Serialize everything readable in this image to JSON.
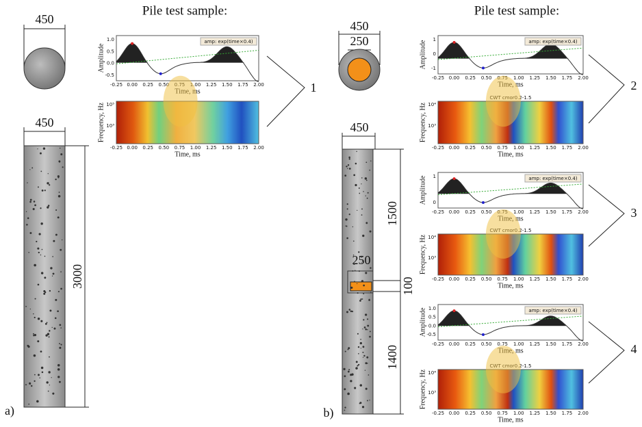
{
  "panel_a": {
    "label": "a)",
    "title": "Pile test sample:",
    "cap_diameter": "450",
    "shaft_width": "450",
    "length": "3000",
    "callout": "1"
  },
  "panel_b": {
    "label": "b)",
    "title": "Pile test sample:",
    "outer_diameter": "450",
    "inner_diameter": "250",
    "shaft_width": "450",
    "upper_length": "1500",
    "defect_width": "250",
    "defect_height": "100",
    "lower_length": "1400",
    "callouts": [
      "2",
      "3",
      "4"
    ]
  },
  "time_ticks": [
    "-0.25",
    "0.00",
    "0.25",
    "0.50",
    "0.75",
    "1.00",
    "1.25",
    "1.50",
    "1.75",
    "2.00"
  ],
  "plots": [
    {
      "amplitude_label": "Amplitude",
      "time_label": "Time, ms",
      "legend": "amp: exp(time×0.4)",
      "amplitude_ticks": [
        "1.0",
        "0.5",
        "0.0",
        "-0.5"
      ],
      "frequency_label": "Frequency, Hz",
      "frequency_ticks": [
        "10⁵",
        "10³"
      ],
      "cwt_time_label": "Time, ms"
    },
    {
      "amplitude_label": "Amplitude",
      "time_label": "Time, ms",
      "legend": "amp: exp(time×0.4)",
      "amplitude_ticks": [
        "1",
        "0",
        "-1"
      ],
      "cwt_title": "CWT cmor0.2-1.5",
      "frequency_label": "Frequency, Hz",
      "frequency_ticks": [
        "10⁴",
        "10³"
      ],
      "cwt_time_label": "Time, ms"
    },
    {
      "amplitude_label": "Amplitude",
      "time_label": "Time, ms",
      "legend": "amp: exp(time×0.4)",
      "amplitude_ticks": [
        "1",
        "0"
      ],
      "cwt_title": "CWT cmor0.2-1.5",
      "frequency_label": "Frequency, Hz",
      "frequency_ticks": [
        "10⁴",
        "10³"
      ],
      "cwt_time_label": "Time, ms"
    },
    {
      "amplitude_label": "Amplitude",
      "time_label": "Time, ms",
      "legend": "amp: exp(time×0.4)",
      "amplitude_ticks": [
        "1.0",
        "0.5",
        "0.0",
        "-0.5"
      ],
      "cwt_title": "CWT cmor0.2-1.5",
      "frequency_label": "Frequency, Hz",
      "frequency_ticks": [
        "10⁴",
        "10³"
      ],
      "cwt_time_label": "Time, ms"
    }
  ]
}
